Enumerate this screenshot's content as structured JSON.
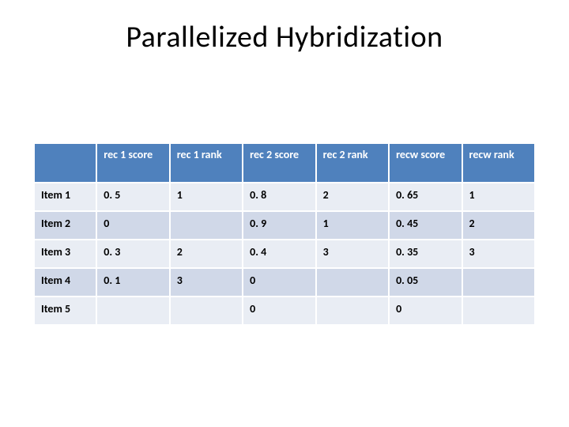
{
  "title": "Parallelized Hybridization",
  "table": {
    "type": "table",
    "header_bg": "#4f81bd",
    "header_fg": "#ffffff",
    "band_light": "#e9edf4",
    "band_dark": "#d0d8e8",
    "border_color": "#ffffff",
    "font_size": 14,
    "font_weight": 700,
    "columns": [
      "",
      "rec 1 score",
      "rec 1 rank",
      "rec 2 score",
      "rec 2 rank",
      "recw score",
      "recw rank"
    ],
    "rows": [
      {
        "label": "Item 1",
        "cells": [
          "0. 5",
          "1",
          "0. 8",
          "2",
          "0. 65",
          "1"
        ]
      },
      {
        "label": "Item 2",
        "cells": [
          "0",
          "",
          "0. 9",
          "1",
          "0. 45",
          "2"
        ]
      },
      {
        "label": "Item 3",
        "cells": [
          "0. 3",
          "2",
          "0. 4",
          "3",
          "0. 35",
          "3"
        ]
      },
      {
        "label": "Item 4",
        "cells": [
          "0. 1",
          "3",
          "0",
          "",
          "0. 05",
          ""
        ]
      },
      {
        "label": "Item 5",
        "cells": [
          "",
          "",
          "0",
          "",
          "0",
          ""
        ]
      }
    ]
  }
}
